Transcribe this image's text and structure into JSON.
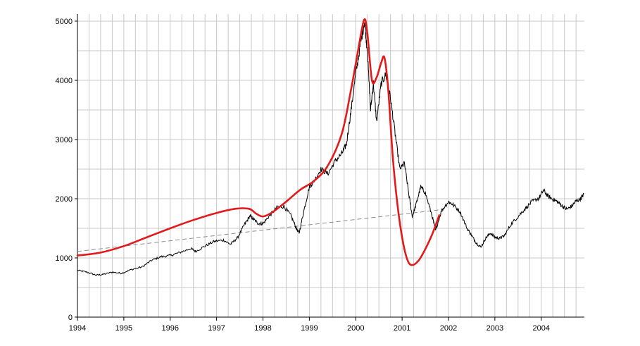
{
  "chart_data": {
    "type": "line",
    "title": "",
    "xlabel": "",
    "ylabel": "",
    "xlim": [
      1994,
      2004.93
    ],
    "ylim": [
      0,
      5000
    ],
    "grid": true,
    "x_ticks": [
      "1994",
      "1995",
      "1996",
      "1997",
      "1998",
      "1999",
      "2000",
      "2001",
      "2002",
      "2003",
      "2004"
    ],
    "y_ticks": [
      "0",
      "1000",
      "2000",
      "3000",
      "4000",
      "5000"
    ],
    "colors": {
      "index": "#000000",
      "fit": "#e31a1c",
      "trend": "#8c8c8c",
      "grid": "#c8c8c8"
    },
    "series": [
      {
        "key": "index",
        "style": "thin-black",
        "points": [
          [
            1994.0,
            790
          ],
          [
            1994.2,
            760
          ],
          [
            1994.4,
            710
          ],
          [
            1994.55,
            720
          ],
          [
            1994.75,
            760
          ],
          [
            1994.95,
            740
          ],
          [
            1995.15,
            800
          ],
          [
            1995.4,
            850
          ],
          [
            1995.6,
            960
          ],
          [
            1995.8,
            1020
          ],
          [
            1996.0,
            1040
          ],
          [
            1996.2,
            1090
          ],
          [
            1996.45,
            1160
          ],
          [
            1996.55,
            1110
          ],
          [
            1996.75,
            1200
          ],
          [
            1996.95,
            1280
          ],
          [
            1997.15,
            1300
          ],
          [
            1997.3,
            1230
          ],
          [
            1997.45,
            1340
          ],
          [
            1997.6,
            1560
          ],
          [
            1997.72,
            1710
          ],
          [
            1997.8,
            1650
          ],
          [
            1997.9,
            1580
          ],
          [
            1998.0,
            1580
          ],
          [
            1998.15,
            1720
          ],
          [
            1998.3,
            1850
          ],
          [
            1998.45,
            1870
          ],
          [
            1998.6,
            1720
          ],
          [
            1998.72,
            1500
          ],
          [
            1998.78,
            1420
          ],
          [
            1998.88,
            1790
          ],
          [
            1999.0,
            2200
          ],
          [
            1999.1,
            2300
          ],
          [
            1999.25,
            2500
          ],
          [
            1999.4,
            2420
          ],
          [
            1999.55,
            2630
          ],
          [
            1999.7,
            2760
          ],
          [
            1999.8,
            2920
          ],
          [
            1999.9,
            3500
          ],
          [
            2000.0,
            4100
          ],
          [
            2000.1,
            4600
          ],
          [
            2000.19,
            5000
          ],
          [
            2000.25,
            4500
          ],
          [
            2000.32,
            3500
          ],
          [
            2000.38,
            3950
          ],
          [
            2000.45,
            3300
          ],
          [
            2000.55,
            3950
          ],
          [
            2000.65,
            4100
          ],
          [
            2000.75,
            3700
          ],
          [
            2000.85,
            3100
          ],
          [
            2000.95,
            2500
          ],
          [
            2001.05,
            2600
          ],
          [
            2001.15,
            2050
          ],
          [
            2001.22,
            1700
          ],
          [
            2001.3,
            1900
          ],
          [
            2001.4,
            2200
          ],
          [
            2001.5,
            2100
          ],
          [
            2001.65,
            1700
          ],
          [
            2001.72,
            1460
          ],
          [
            2001.85,
            1800
          ],
          [
            2002.0,
            1950
          ],
          [
            2002.1,
            1900
          ],
          [
            2002.25,
            1780
          ],
          [
            2002.4,
            1500
          ],
          [
            2002.5,
            1380
          ],
          [
            2002.6,
            1250
          ],
          [
            2002.7,
            1180
          ],
          [
            2002.8,
            1330
          ],
          [
            2002.9,
            1420
          ],
          [
            2003.0,
            1350
          ],
          [
            2003.1,
            1330
          ],
          [
            2003.2,
            1370
          ],
          [
            2003.35,
            1570
          ],
          [
            2003.5,
            1700
          ],
          [
            2003.65,
            1830
          ],
          [
            2003.8,
            1950
          ],
          [
            2003.95,
            2010
          ],
          [
            2004.05,
            2140
          ],
          [
            2004.15,
            2040
          ],
          [
            2004.25,
            1990
          ],
          [
            2004.35,
            1950
          ],
          [
            2004.45,
            1880
          ],
          [
            2004.55,
            1820
          ],
          [
            2004.65,
            1870
          ],
          [
            2004.75,
            1960
          ],
          [
            2004.85,
            2000
          ],
          [
            2004.92,
            2080
          ]
        ]
      },
      {
        "key": "fit",
        "style": "thick-red",
        "points": [
          [
            1994.0,
            1040
          ],
          [
            1994.5,
            1090
          ],
          [
            1995.0,
            1200
          ],
          [
            1995.5,
            1350
          ],
          [
            1996.0,
            1500
          ],
          [
            1996.5,
            1640
          ],
          [
            1997.0,
            1760
          ],
          [
            1997.4,
            1830
          ],
          [
            1997.7,
            1830
          ],
          [
            1997.85,
            1750
          ],
          [
            1998.0,
            1700
          ],
          [
            1998.2,
            1770
          ],
          [
            1998.5,
            1950
          ],
          [
            1998.8,
            2150
          ],
          [
            1999.1,
            2300
          ],
          [
            1999.4,
            2560
          ],
          [
            1999.7,
            3100
          ],
          [
            1999.9,
            3850
          ],
          [
            2000.05,
            4500
          ],
          [
            2000.18,
            5020
          ],
          [
            2000.25,
            4800
          ],
          [
            2000.35,
            4000
          ],
          [
            2000.45,
            4050
          ],
          [
            2000.55,
            4300
          ],
          [
            2000.62,
            4380
          ],
          [
            2000.7,
            3850
          ],
          [
            2000.8,
            2700
          ],
          [
            2000.9,
            1900
          ],
          [
            2001.0,
            1350
          ],
          [
            2001.1,
            1000
          ],
          [
            2001.2,
            880
          ],
          [
            2001.35,
            950
          ],
          [
            2001.5,
            1150
          ],
          [
            2001.65,
            1400
          ],
          [
            2001.8,
            1720
          ]
        ]
      },
      {
        "key": "trend",
        "style": "dashed-gray",
        "points": [
          [
            1994.0,
            1110
          ],
          [
            2001.9,
            1820
          ]
        ]
      }
    ]
  }
}
